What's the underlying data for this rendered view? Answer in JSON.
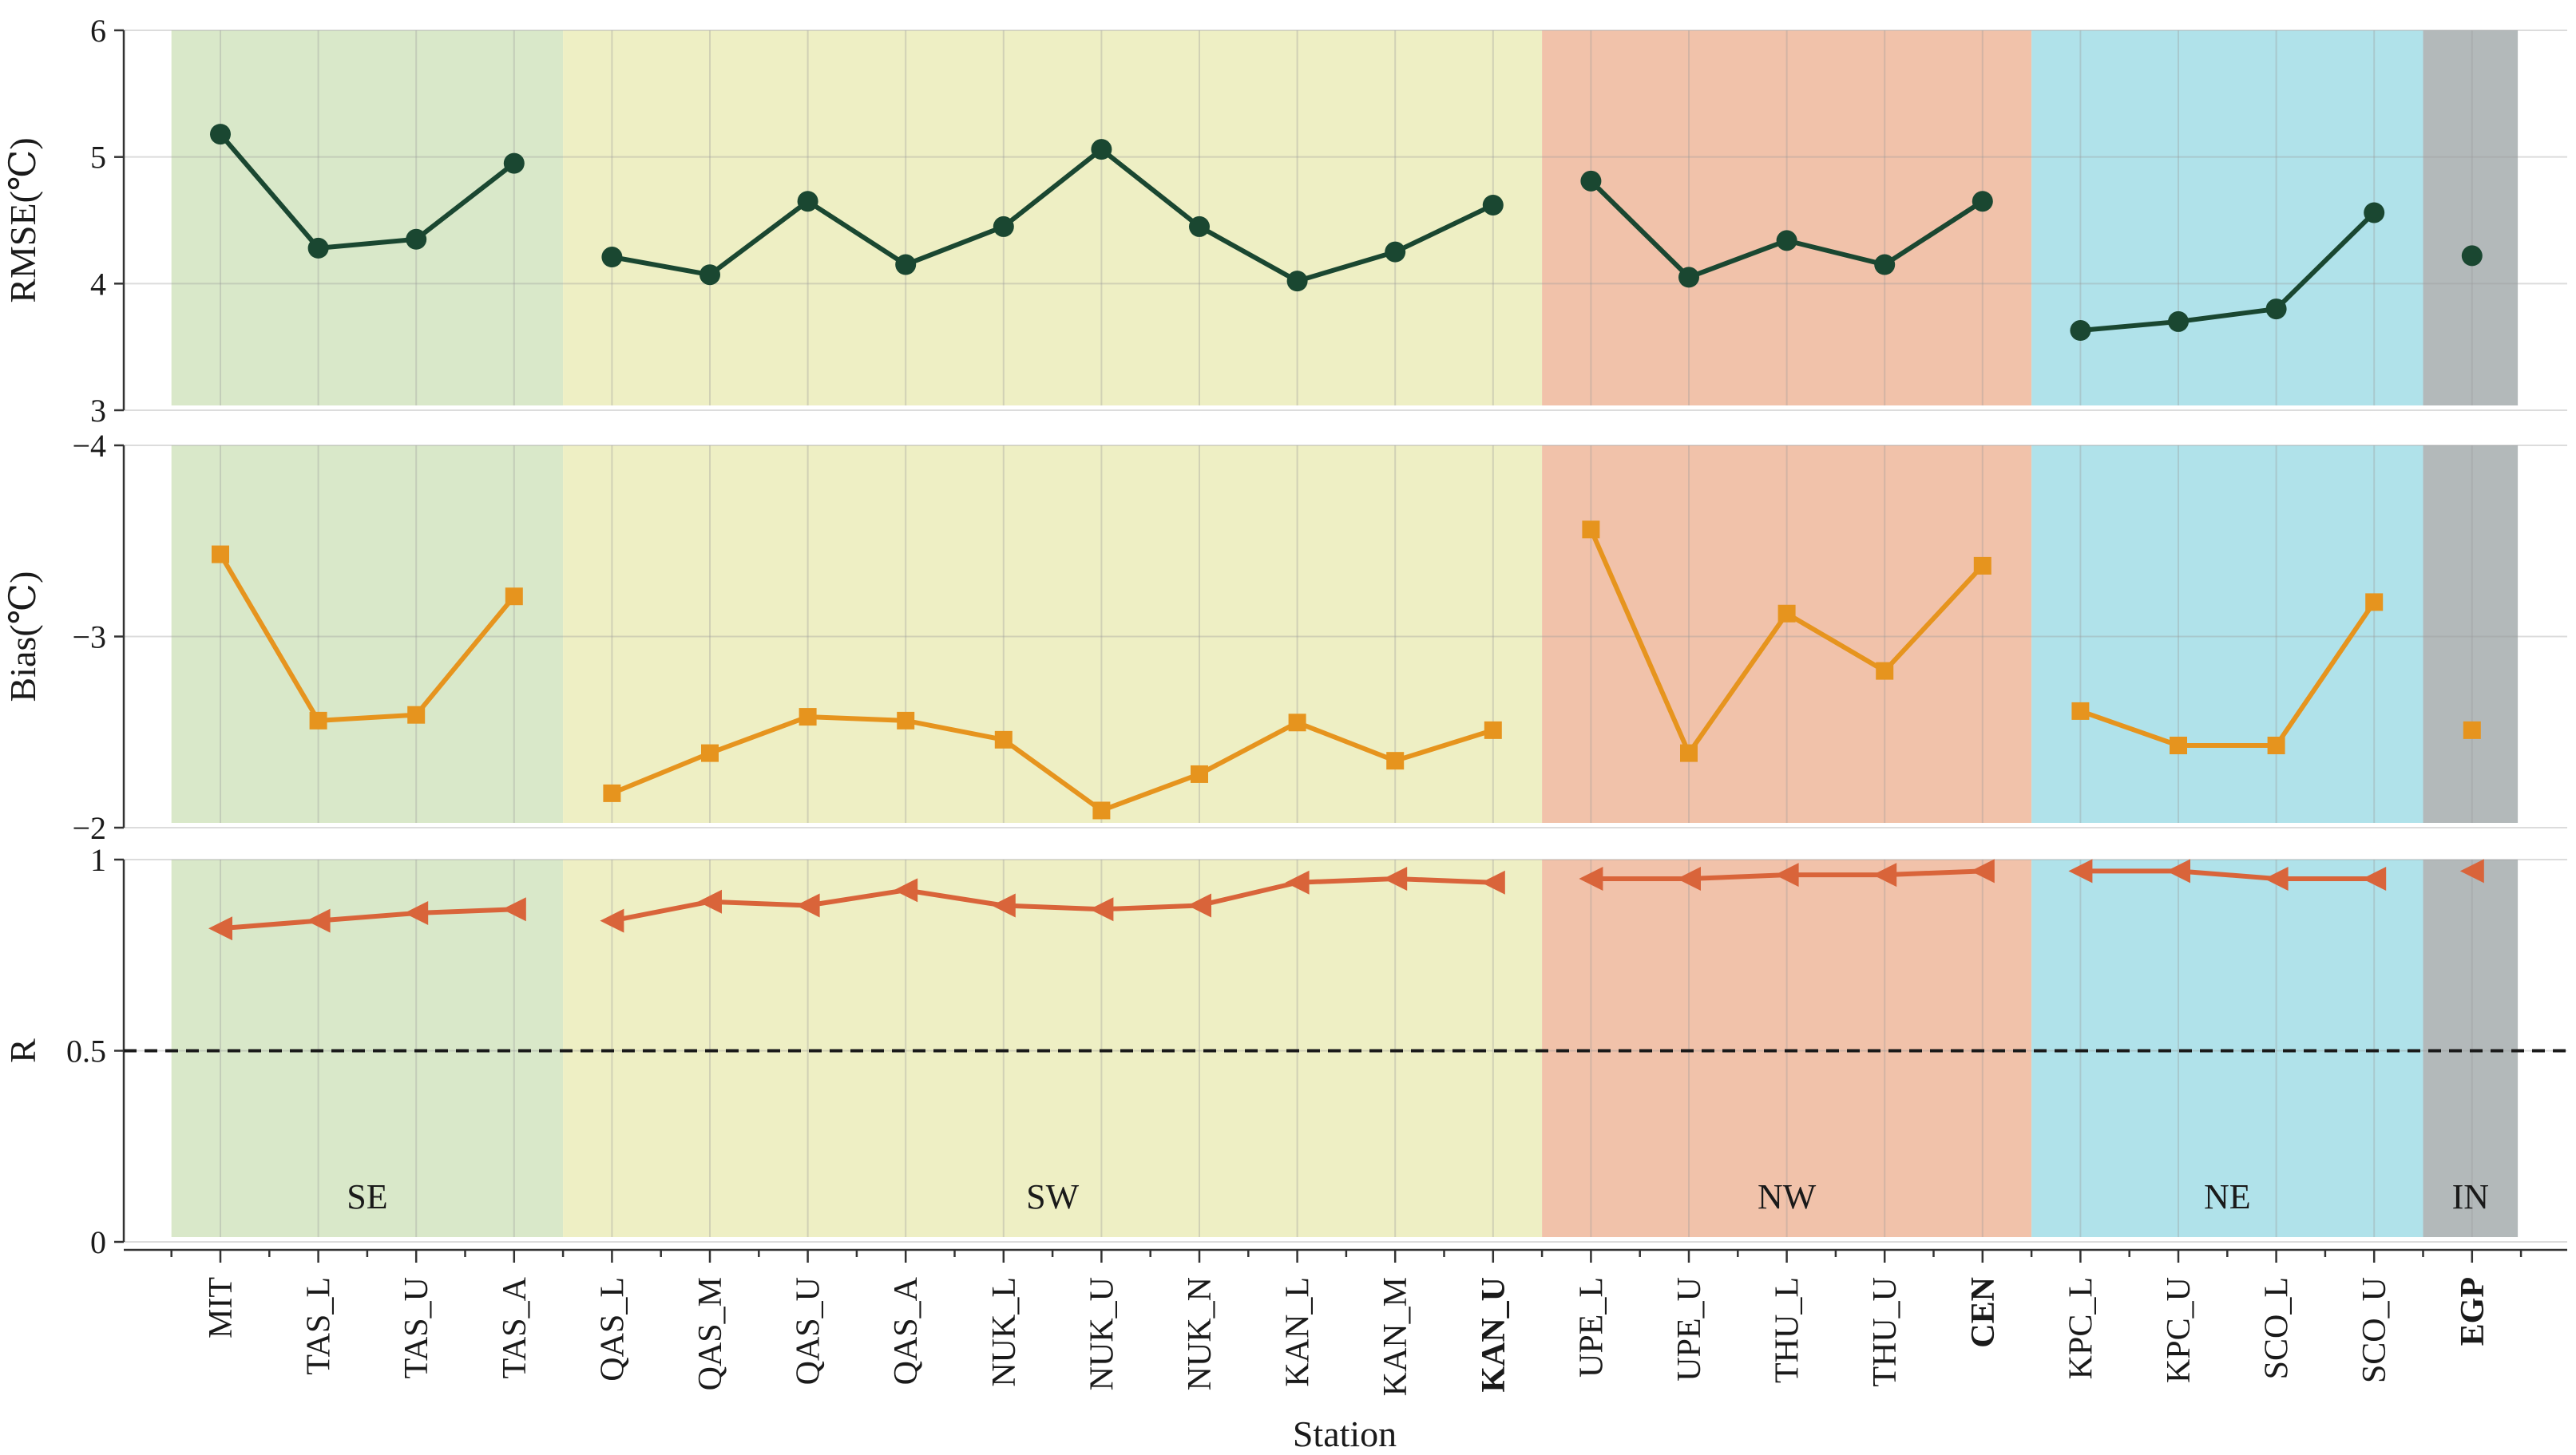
{
  "chart_data": {
    "type": "line",
    "xlabel": "Station",
    "stations": [
      {
        "name": "MIT",
        "bold": false
      },
      {
        "name": "TAS_L",
        "bold": false
      },
      {
        "name": "TAS_U",
        "bold": false
      },
      {
        "name": "TAS_A",
        "bold": false
      },
      {
        "name": "QAS_L",
        "bold": false
      },
      {
        "name": "QAS_M",
        "bold": false
      },
      {
        "name": "QAS_U",
        "bold": false
      },
      {
        "name": "QAS_A",
        "bold": false
      },
      {
        "name": "NUK_L",
        "bold": false
      },
      {
        "name": "NUK_U",
        "bold": false
      },
      {
        "name": "NUK_N",
        "bold": false
      },
      {
        "name": "KAN_L",
        "bold": false
      },
      {
        "name": "KAN_M",
        "bold": false
      },
      {
        "name": "KAN_U",
        "bold": true
      },
      {
        "name": "UPE_L",
        "bold": false
      },
      {
        "name": "UPE_U",
        "bold": false
      },
      {
        "name": "THU_L",
        "bold": false
      },
      {
        "name": "THU_U",
        "bold": false
      },
      {
        "name": "CEN",
        "bold": true
      },
      {
        "name": "KPC_L",
        "bold": false
      },
      {
        "name": "KPC_U",
        "bold": false
      },
      {
        "name": "SCO_L",
        "bold": false
      },
      {
        "name": "SCO_U",
        "bold": false
      },
      {
        "name": "EGP",
        "bold": true
      }
    ],
    "regions": [
      {
        "name": "SE",
        "color": "#d9e8c9",
        "start": 0,
        "end": 3
      },
      {
        "name": "SW",
        "color": "#eeefc4",
        "start": 4,
        "end": 13
      },
      {
        "name": "NW",
        "color": "#f1c2aa",
        "start": 14,
        "end": 18
      },
      {
        "name": "NE",
        "color": "#b0e2ea",
        "start": 19,
        "end": 22
      },
      {
        "name": "IN",
        "color": "#b3b9ba",
        "start": 23,
        "end": 23
      }
    ],
    "panels": [
      {
        "key": "rmse",
        "ylabel": "RMSE(℃)",
        "ylim": [
          3,
          6
        ],
        "ticks": [
          3,
          4,
          5,
          6
        ],
        "tick_labels": [
          "3",
          "4",
          "5",
          "6"
        ],
        "marker": "circle",
        "color": "#1a4731",
        "values": [
          5.18,
          4.28,
          4.35,
          4.95,
          4.21,
          4.07,
          4.65,
          4.15,
          4.45,
          5.06,
          4.45,
          4.02,
          4.25,
          4.62,
          4.81,
          4.05,
          4.34,
          4.15,
          4.65,
          3.63,
          3.7,
          3.8,
          4.56,
          4.22
        ],
        "segments": [
          [
            0,
            3
          ],
          [
            4,
            13
          ],
          [
            14,
            18
          ],
          [
            19,
            22
          ],
          [
            23,
            23
          ]
        ]
      },
      {
        "key": "bias",
        "ylabel": "Bias(℃)",
        "ylim": [
          -4,
          -2
        ],
        "inverted": true,
        "ticks": [
          -2,
          -3,
          -4
        ],
        "tick_labels": [
          "−2",
          "−3",
          "−4"
        ],
        "marker": "square",
        "color": "#e6941e",
        "values": [
          -3.43,
          -2.56,
          -2.59,
          -3.21,
          -2.18,
          -2.39,
          -2.58,
          -2.56,
          -2.46,
          -2.09,
          -2.28,
          -2.55,
          -2.35,
          -2.51,
          -3.56,
          -2.39,
          -3.12,
          -2.82,
          -3.37,
          -2.61,
          -2.43,
          -2.43,
          -3.18,
          -2.51
        ],
        "segments": [
          [
            0,
            3
          ],
          [
            4,
            13
          ],
          [
            14,
            18
          ],
          [
            19,
            22
          ],
          [
            23,
            23
          ]
        ]
      },
      {
        "key": "r",
        "ylabel": "R",
        "ylim": [
          0,
          1
        ],
        "ticks": [
          0,
          0.5,
          1
        ],
        "tick_labels": [
          "0",
          "0.5",
          "1"
        ],
        "marker": "triangle-left",
        "color": "#d9643a",
        "reference_line": 0.5,
        "values": [
          0.82,
          0.84,
          0.86,
          0.87,
          0.84,
          0.89,
          0.88,
          0.92,
          0.88,
          0.87,
          0.88,
          0.94,
          0.95,
          0.94,
          0.95,
          0.95,
          0.96,
          0.96,
          0.97,
          0.97,
          0.97,
          0.95,
          0.95,
          0.97
        ],
        "segments": [
          [
            0,
            3
          ],
          [
            4,
            13
          ],
          [
            14,
            18
          ],
          [
            19,
            22
          ],
          [
            23,
            23
          ]
        ]
      }
    ]
  }
}
